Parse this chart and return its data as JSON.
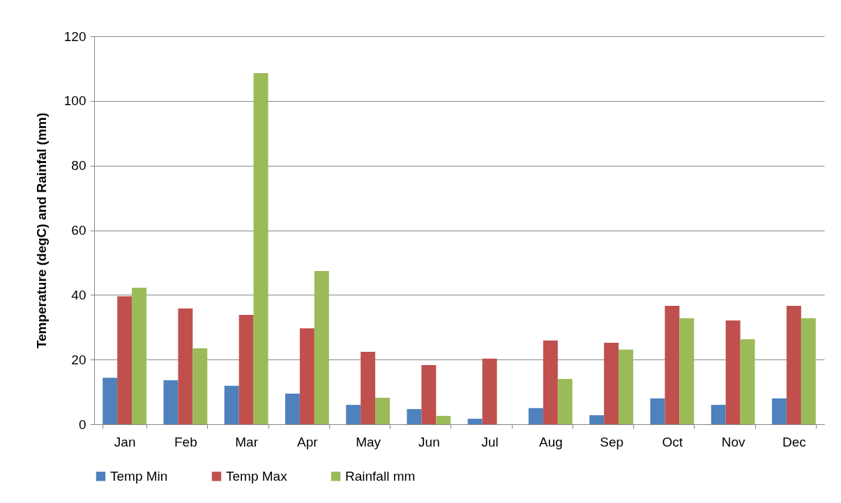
{
  "chart_data": {
    "type": "bar",
    "ylabel": "Temperature (degC) and Rainfal (mm)",
    "categories": [
      "Jan",
      "Feb",
      "Mar",
      "Apr",
      "May",
      "Jun",
      "Jul",
      "Aug",
      "Sep",
      "Oct",
      "Nov",
      "Dec"
    ],
    "series": [
      {
        "name": "Temp Min",
        "color": "#4f81bd",
        "values": [
          14.4,
          13.6,
          11.9,
          9.5,
          6.0,
          4.7,
          1.7,
          5.0,
          2.8,
          8.0,
          6.0,
          8.0
        ]
      },
      {
        "name": "Temp Max",
        "color": "#c0504d",
        "values": [
          39.6,
          35.8,
          33.8,
          29.7,
          22.4,
          18.3,
          20.3,
          25.9,
          25.2,
          36.6,
          32.1,
          36.6
        ]
      },
      {
        "name": "Rainfall mm",
        "color": "#9bbb59",
        "values": [
          42.2,
          23.5,
          108.6,
          47.4,
          8.2,
          2.6,
          0,
          14.0,
          23.1,
          32.8,
          26.3,
          32.8
        ]
      }
    ],
    "ylim": [
      0,
      120
    ],
    "yticks": [
      0,
      20,
      40,
      60,
      80,
      100,
      120
    ],
    "grid": "y",
    "legend": "bottom"
  }
}
